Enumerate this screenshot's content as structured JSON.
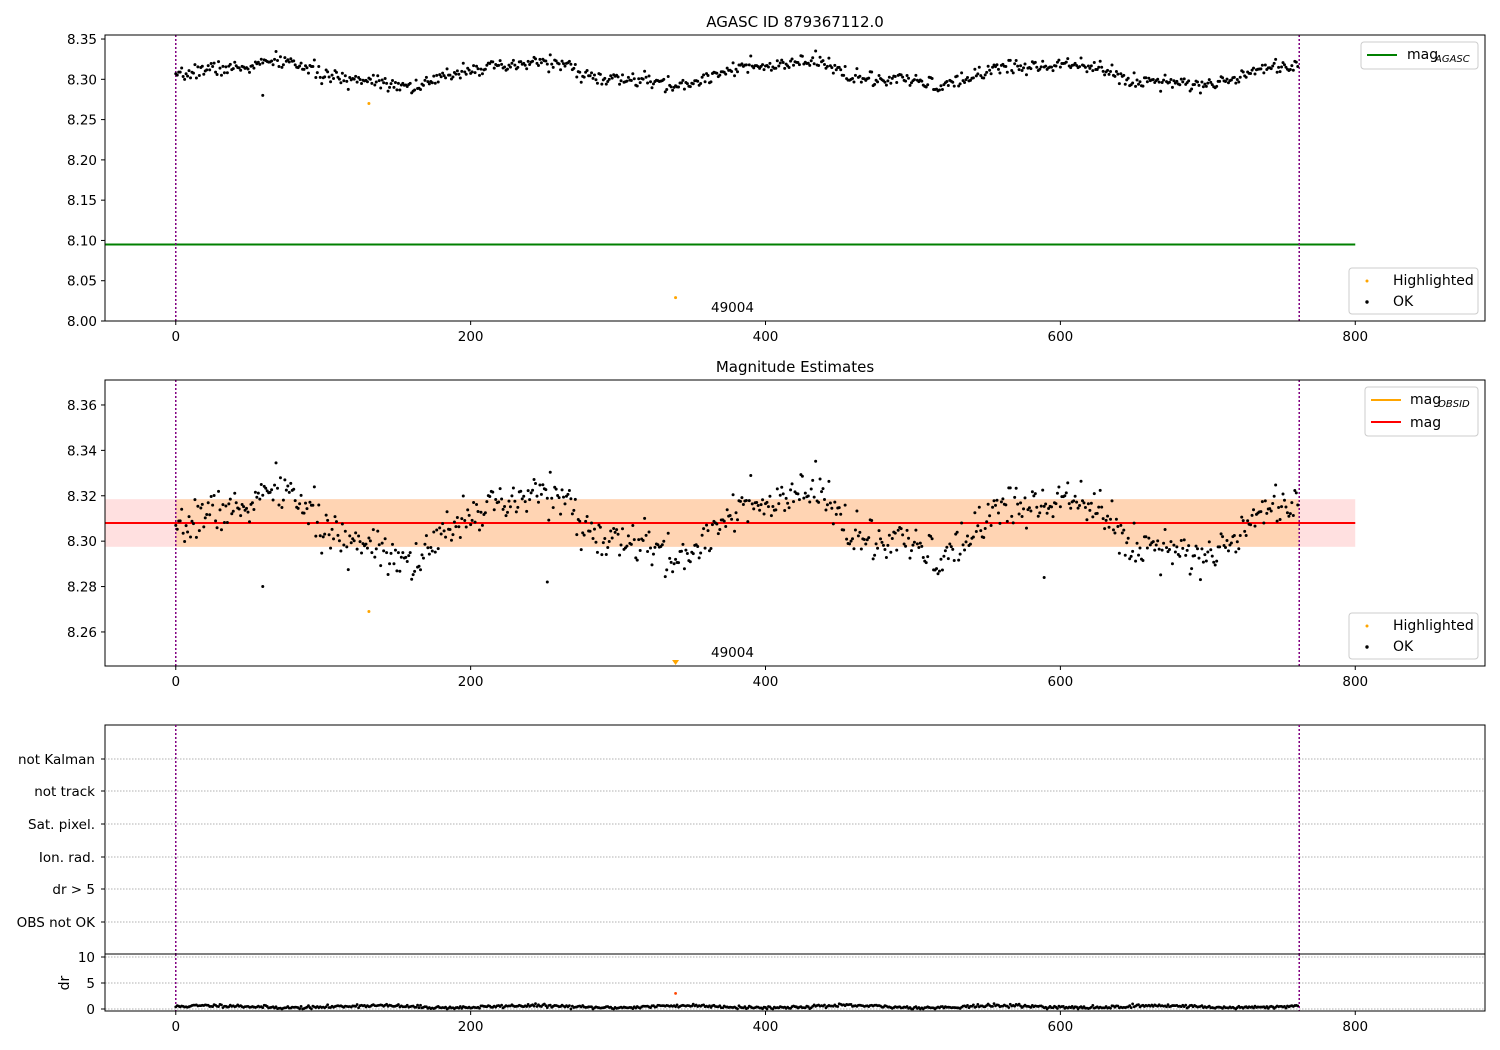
{
  "chart_data": [
    {
      "type": "scatter",
      "title": "AGASC ID 879367112.0",
      "xlim": [
        -48,
        888
      ],
      "ylim": [
        8.0,
        8.355
      ],
      "xticks": [
        0,
        200,
        400,
        600,
        800
      ],
      "yticks": [
        8.0,
        8.05,
        8.1,
        8.15,
        8.2,
        8.25,
        8.3,
        8.35
      ],
      "ytick_decimals": 2,
      "vlines": [
        0,
        762
      ],
      "hline": {
        "name": "mag",
        "sub": "AGASC",
        "value": 8.095,
        "x_end": 800
      },
      "series_ok": {
        "name": "OK",
        "n": 762,
        "mean": 8.307,
        "wave_amp": 0.013,
        "noise": 0.0045,
        "seed": 7
      },
      "highlighted": [
        {
          "x": 131,
          "y": 8.27
        },
        {
          "x": 339,
          "y": 8.029
        }
      ],
      "outliers_ok": [
        {
          "x": 59,
          "y": 8.28
        }
      ],
      "annotation": {
        "text": "49004",
        "x": 380
      },
      "legend_lines": [
        {
          "label": "mag",
          "sub": "AGASC",
          "color": "#008000"
        }
      ],
      "legend_points": [
        {
          "label": "Highlighted",
          "color": "#ffa500"
        },
        {
          "label": "OK",
          "color": "#000000"
        }
      ]
    },
    {
      "type": "scatter",
      "title": "Magnitude Estimates",
      "xlim": [
        -48,
        888
      ],
      "ylim": [
        8.245,
        8.371
      ],
      "xticks": [
        0,
        200,
        400,
        600,
        800
      ],
      "yticks": [
        8.26,
        8.28,
        8.3,
        8.32,
        8.34,
        8.36
      ],
      "ytick_decimals": 2,
      "vlines": [
        0,
        762
      ],
      "mag_line": {
        "value": 8.308,
        "x_end": 800
      },
      "band_pink": [
        8.2975,
        8.3185
      ],
      "band_orange": [
        8.2975,
        8.3185
      ],
      "series_ok": {
        "name": "OK",
        "n": 762,
        "mean": 8.307,
        "wave_amp": 0.013,
        "noise": 0.0045,
        "seed": 7
      },
      "highlighted": [
        {
          "x": 131,
          "y": 8.269
        }
      ],
      "triangle_marker": {
        "x": 339,
        "y": 8.245
      },
      "outliers_ok": [
        {
          "x": 59,
          "y": 8.28
        },
        {
          "x": 252,
          "y": 8.282
        },
        {
          "x": 589,
          "y": 8.284
        }
      ],
      "annotation": {
        "text": "49004",
        "x": 380
      },
      "legend_lines": [
        {
          "label": "mag",
          "sub": "OBSID",
          "color": "#ffa500"
        },
        {
          "label": "mag",
          "sub": "",
          "color": "#ff0000"
        }
      ],
      "legend_points": [
        {
          "label": "Highlighted",
          "color": "#ffa500"
        },
        {
          "label": "OK",
          "color": "#000000"
        }
      ]
    },
    {
      "type": "scatter",
      "xlim": [
        -48,
        888
      ],
      "xticks": [
        0,
        200,
        400,
        600,
        800
      ],
      "vlines": [
        0,
        762
      ],
      "flag_labels": [
        "not Kalman",
        "not track",
        "Sat. pixel.",
        "Ion. rad.",
        "dr > 5",
        "OBS not OK"
      ],
      "ylabel": "dr",
      "ylim": [
        0,
        10
      ],
      "yticks": [
        0,
        5,
        10
      ],
      "dr_series": {
        "n": 762,
        "mean": 0.45,
        "noise": 0.25,
        "seed": 11
      },
      "dr_highlight": {
        "x": 339,
        "y": 3.0
      }
    }
  ]
}
